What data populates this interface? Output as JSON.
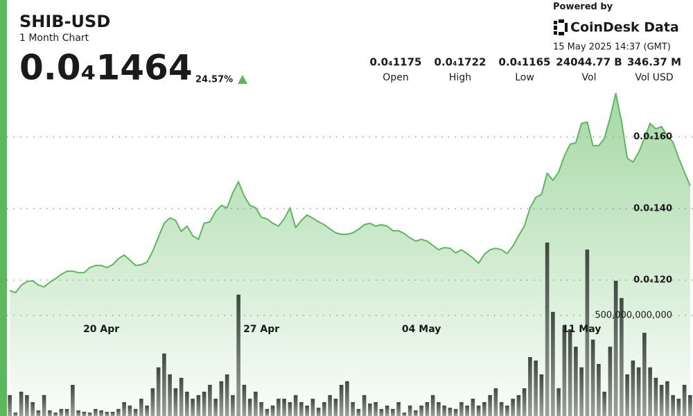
{
  "header": {
    "title": "SHIB-USD",
    "subtitle": "1 Month Chart",
    "price": "0.0₄1464",
    "change": "24.57%",
    "powered_by": "Powered by",
    "brand": "CoinDesk Data",
    "timestamp": "15 May 2025 14:37 (GMT)",
    "stats": [
      {
        "value": "0.0₄1175",
        "label": "Open"
      },
      {
        "value": "0.0₄1722",
        "label": "High"
      },
      {
        "value": "0.0₄1165",
        "label": "Low"
      },
      {
        "value": "24044.77 B",
        "label": "Vol"
      },
      {
        "value": "346.37 M",
        "label": "Vol USD"
      }
    ]
  },
  "chart_data": {
    "type": "area",
    "categories": [
      null,
      null,
      null,
      null,
      null,
      null,
      null,
      null,
      null,
      null,
      null,
      null,
      null,
      null,
      null,
      null,
      "20 Apr",
      null,
      null,
      null,
      null,
      null,
      null,
      null,
      null,
      null,
      null,
      null,
      null,
      null,
      null,
      null,
      null,
      null,
      null,
      null,
      null,
      null,
      null,
      null,
      null,
      null,
      null,
      null,
      "27 Apr",
      null,
      null,
      null,
      null,
      null,
      null,
      null,
      null,
      null,
      null,
      null,
      null,
      null,
      null,
      null,
      null,
      null,
      null,
      null,
      null,
      null,
      null,
      null,
      null,
      null,
      null,
      null,
      "04 May",
      null,
      null,
      null,
      null,
      null,
      null,
      null,
      null,
      null,
      null,
      null,
      null,
      null,
      null,
      null,
      null,
      null,
      null,
      null,
      null,
      null,
      null,
      null,
      null,
      null,
      null,
      null,
      "11 May",
      null,
      null,
      null,
      null,
      null,
      null,
      null,
      null,
      null,
      null,
      null,
      null,
      null,
      null,
      null,
      null,
      null,
      null,
      null
    ],
    "series": [
      {
        "color": "#5cb85c",
        "values": [
          1.171e-05,
          1.165e-05,
          1.185e-05,
          1.196e-05,
          1.198e-05,
          1.186e-05,
          1.181e-05,
          1.194e-05,
          1.204e-05,
          1.216e-05,
          1.225e-05,
          1.225e-05,
          1.221e-05,
          1.221e-05,
          1.235e-05,
          1.241e-05,
          1.241e-05,
          1.235e-05,
          1.243e-05,
          1.26e-05,
          1.27e-05,
          1.256e-05,
          1.241e-05,
          1.243e-05,
          1.25e-05,
          1.281e-05,
          1.32e-05,
          1.359e-05,
          1.374e-05,
          1.367e-05,
          1.336e-05,
          1.351e-05,
          1.324e-05,
          1.314e-05,
          1.359e-05,
          1.363e-05,
          1.392e-05,
          1.409e-05,
          1.402e-05,
          1.444e-05,
          1.475e-05,
          1.435e-05,
          1.409e-05,
          1.402e-05,
          1.376e-05,
          1.371e-05,
          1.359e-05,
          1.351e-05,
          1.371e-05,
          1.402e-05,
          1.347e-05,
          1.367e-05,
          1.382e-05,
          1.373e-05,
          1.363e-05,
          1.355e-05,
          1.343e-05,
          1.332e-05,
          1.328e-05,
          1.328e-05,
          1.332e-05,
          1.342e-05,
          1.355e-05,
          1.359e-05,
          1.351e-05,
          1.355e-05,
          1.351e-05,
          1.338e-05,
          1.338e-05,
          1.33e-05,
          1.318e-05,
          1.309e-05,
          1.314e-05,
          1.309e-05,
          1.297e-05,
          1.285e-05,
          1.291e-05,
          1.289e-05,
          1.276e-05,
          1.285e-05,
          1.274e-05,
          1.262e-05,
          1.247e-05,
          1.272e-05,
          1.285e-05,
          1.289e-05,
          1.285e-05,
          1.274e-05,
          1.295e-05,
          1.324e-05,
          1.351e-05,
          1.402e-05,
          1.431e-05,
          1.44e-05,
          1.499e-05,
          1.479e-05,
          1.502e-05,
          1.547e-05,
          1.58e-05,
          1.584e-05,
          1.638e-05,
          1.642e-05,
          1.576e-05,
          1.576e-05,
          1.596e-05,
          1.654e-05,
          1.722e-05,
          1.644e-05,
          1.541e-05,
          1.53e-05,
          1.557e-05,
          1.596e-05,
          1.638e-05,
          1.623e-05,
          1.629e-05,
          1.603e-05,
          1.586e-05,
          1.541e-05,
          1.502e-05,
          1.464e-05
        ]
      },
      {
        "color": "#555555",
        "type": "bar",
        "axis": "y2",
        "values": [
          104000000000.0,
          17000000000.0,
          121000000000.0,
          104000000000.0,
          69000000000.0,
          28000000000.0,
          104000000000.0,
          28000000000.0,
          17000000000.0,
          35000000000.0,
          35000000000.0,
          155000000000.0,
          28000000000.0,
          21000000000.0,
          17000000000.0,
          35000000000.0,
          28000000000.0,
          21000000000.0,
          21000000000.0,
          35000000000.0,
          69000000000.0,
          52000000000.0,
          35000000000.0,
          86000000000.0,
          52000000000.0,
          138000000000.0,
          242000000000.0,
          311000000000.0,
          207000000000.0,
          138000000000.0,
          190000000000.0,
          121000000000.0,
          86000000000.0,
          104000000000.0,
          121000000000.0,
          155000000000.0,
          86000000000.0,
          173000000000.0,
          207000000000.0,
          104000000000.0,
          604000000000.0,
          155000000000.0,
          86000000000.0,
          121000000000.0,
          69000000000.0,
          35000000000.0,
          52000000000.0,
          86000000000.0,
          86000000000.0,
          69000000000.0,
          104000000000.0,
          69000000000.0,
          52000000000.0,
          86000000000.0,
          41000000000.0,
          69000000000.0,
          104000000000.0,
          86000000000.0,
          155000000000.0,
          173000000000.0,
          69000000000.0,
          35000000000.0,
          104000000000.0,
          62000000000.0,
          69000000000.0,
          35000000000.0,
          52000000000.0,
          35000000000.0,
          69000000000.0,
          17000000000.0,
          52000000000.0,
          28000000000.0,
          52000000000.0,
          69000000000.0,
          104000000000.0,
          69000000000.0,
          52000000000.0,
          41000000000.0,
          35000000000.0,
          69000000000.0,
          52000000000.0,
          86000000000.0,
          52000000000.0,
          69000000000.0,
          104000000000.0,
          138000000000.0,
          69000000000.0,
          52000000000.0,
          86000000000.0,
          104000000000.0,
          138000000000.0,
          293000000000.0,
          276000000000.0,
          207000000000.0,
          863000000000.0,
          518000000000.0,
          138000000000.0,
          449000000000.0,
          431000000000.0,
          345000000000.0,
          242000000000.0,
          828000000000.0,
          380000000000.0,
          259000000000.0,
          121000000000.0,
          345000000000.0,
          673000000000.0,
          587000000000.0,
          207000000000.0,
          276000000000.0,
          242000000000.0,
          414000000000.0,
          242000000000.0,
          190000000000.0,
          155000000000.0,
          173000000000.0,
          104000000000.0,
          86000000000.0,
          155000000000.0,
          104000000000.0
        ]
      }
    ],
    "ylim": [
      8.2e-06,
      1.77e-05
    ],
    "yticks": [
      {
        "value": 1.2e-05,
        "label": "0.0₄120"
      },
      {
        "value": 1.4e-05,
        "label": "0.0₄140"
      },
      {
        "value": 1.6e-05,
        "label": "0.0₄160"
      }
    ],
    "y2lim": [
      0,
      1690000000000.0
    ],
    "y2ticks": [
      {
        "value": 500000000000.0,
        "label": "500,000,000,000"
      }
    ],
    "grid": true
  }
}
